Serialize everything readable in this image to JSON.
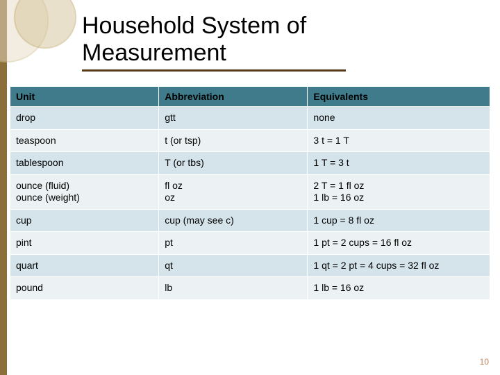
{
  "title_line1": "Household System of",
  "title_line2": "Measurement",
  "underline_color": "#5b3a1a",
  "page_number": "10",
  "page_number_color": "#c0855a",
  "table": {
    "header_bg": "#3f7b8a",
    "header_fg": "#000000",
    "row_alt_a": "#d4e4ea",
    "row_alt_b": "#ecf2f4",
    "columns": [
      "Unit",
      "Abbreviation",
      "Equivalents"
    ],
    "rows": [
      {
        "unit": "drop",
        "abbr": "gtt",
        "equiv": "none"
      },
      {
        "unit": "teaspoon",
        "abbr": "t (or tsp)",
        "equiv": "3 t = 1 T"
      },
      {
        "unit": "tablespoon",
        "abbr": "T (or tbs)",
        "equiv": "1 T = 3 t"
      },
      {
        "unit": "ounce (fluid)\nounce (weight)",
        "abbr": "fl oz\noz",
        "equiv": "2 T = 1 fl oz\n1 lb = 16 oz"
      },
      {
        "unit": "cup",
        "abbr": "cup (may see c)",
        "equiv": "1 cup = 8 fl oz"
      },
      {
        "unit": "pint",
        "abbr": "pt",
        "equiv": "1 pt = 2 cups = 16 fl oz"
      },
      {
        "unit": "quart",
        "abbr": "qt",
        "equiv": "1 qt = 2 pt = 4 cups = 32 fl oz"
      },
      {
        "unit": "pound",
        "abbr": "lb",
        "equiv": "1 lb = 16 oz"
      }
    ]
  }
}
